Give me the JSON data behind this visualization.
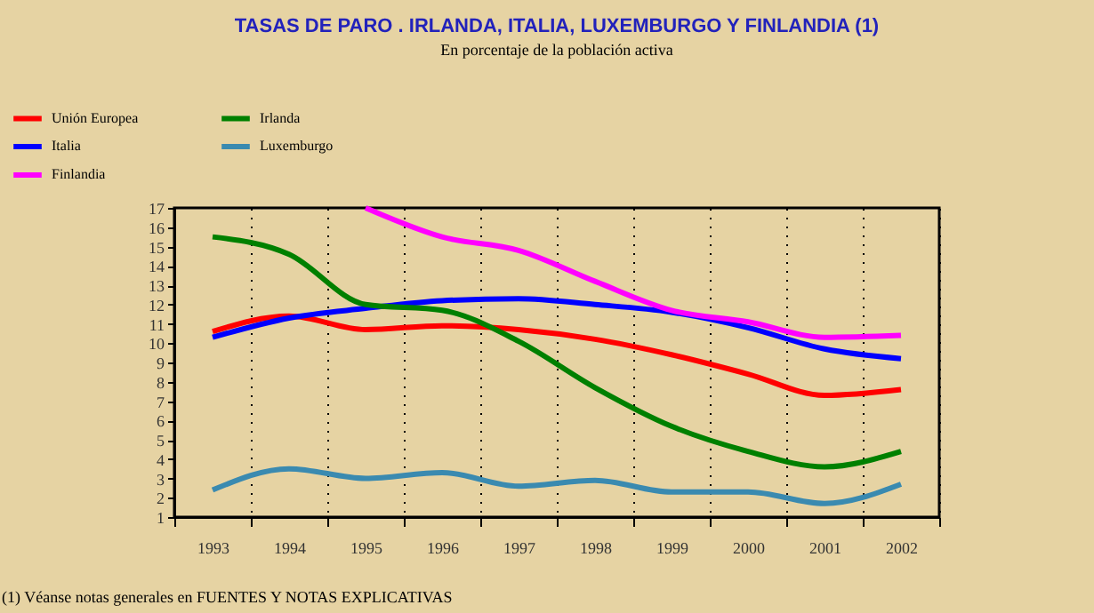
{
  "chart_data": {
    "type": "line",
    "title": "TASAS DE PARO .  IRLANDA, ITALIA, LUXEMBURGO Y FINLANDIA (1)",
    "subtitle": "En porcentaje de la población activa",
    "categories": [
      "1993",
      "1994",
      "1995",
      "1996",
      "1997",
      "1998",
      "1999",
      "2000",
      "2001",
      "2002"
    ],
    "series": [
      {
        "name": "Unión Europea",
        "color": "#ff0000",
        "values": [
          10.6,
          11.4,
          10.7,
          10.9,
          10.7,
          10.2,
          9.4,
          8.4,
          7.3,
          7.6
        ]
      },
      {
        "name": "Italia",
        "color": "#0000ff",
        "values": [
          10.3,
          11.3,
          11.8,
          12.2,
          12.3,
          12.0,
          11.6,
          10.8,
          9.7,
          9.2
        ]
      },
      {
        "name": "Finlandia",
        "color": "#ff00ff",
        "values": [
          null,
          null,
          17,
          15.5,
          14.8,
          13.2,
          11.7,
          11.1,
          10.3,
          10.4
        ]
      },
      {
        "name": "Irlanda",
        "color": "#008000",
        "values": [
          15.5,
          14.6,
          12.0,
          11.7,
          10.1,
          7.7,
          5.7,
          4.4,
          3.6,
          4.4
        ]
      },
      {
        "name": "Luxemburgo",
        "color": "#3a8ab0",
        "values": [
          2.4,
          3.5,
          3.0,
          3.3,
          2.6,
          2.9,
          2.3,
          2.3,
          1.7,
          2.7
        ]
      }
    ],
    "ylim": [
      1,
      17
    ],
    "yticks": [
      1,
      2,
      3,
      4,
      5,
      6,
      7,
      8,
      9,
      10,
      11,
      12,
      13,
      14,
      15,
      16,
      17
    ],
    "grid": "x",
    "legend": "top left",
    "annotations": [
      "(1) Véanse notas generales en FUENTES Y NOTAS EXPLICATIVAS"
    ]
  }
}
